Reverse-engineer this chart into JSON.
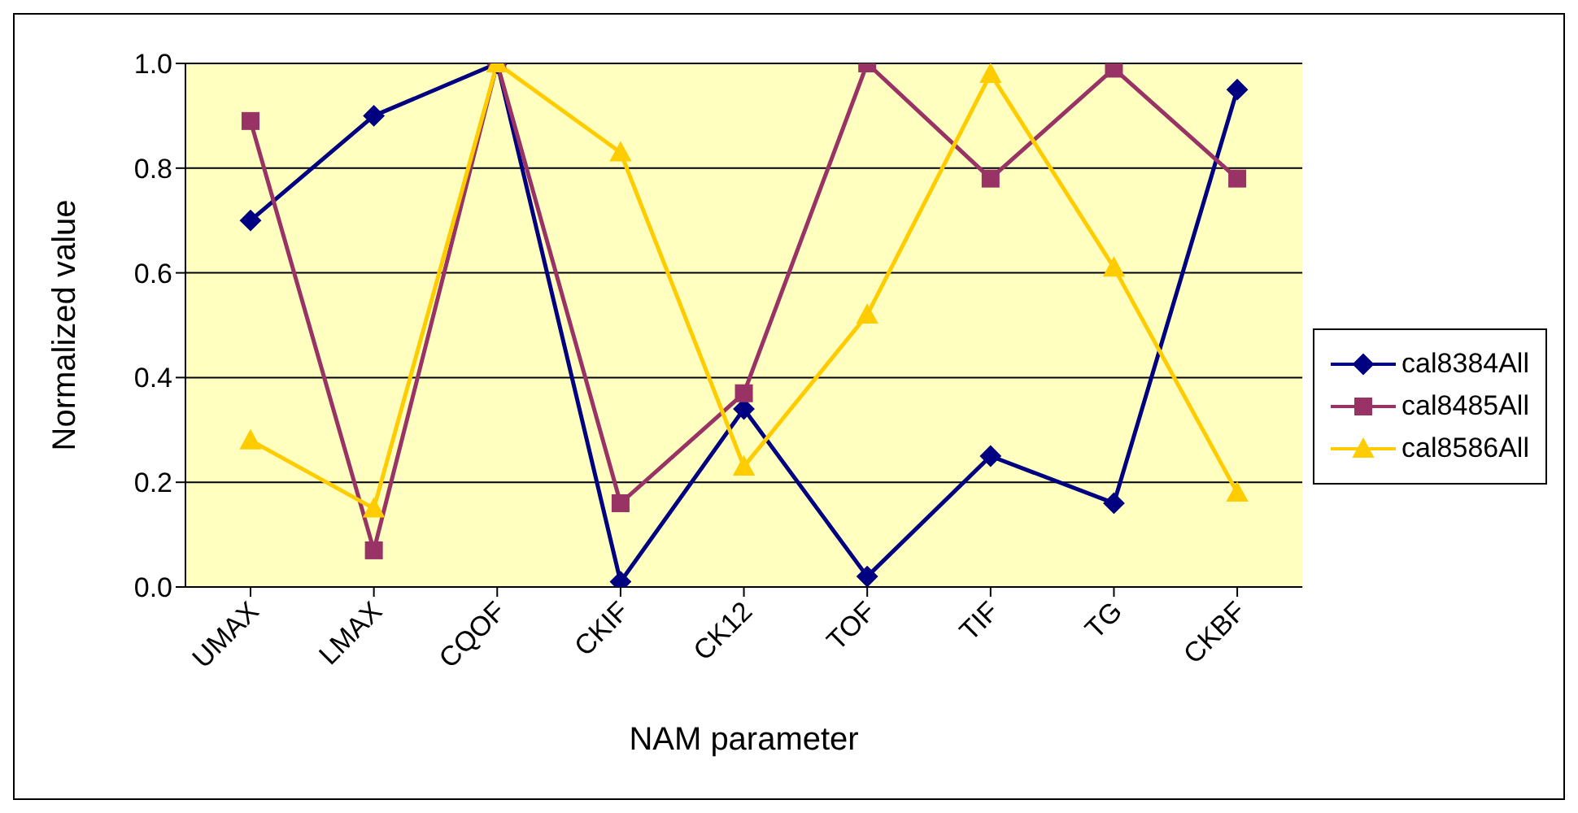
{
  "chart_data": {
    "type": "line",
    "xlabel": "NAM parameter",
    "ylabel": "Normalized value",
    "categories": [
      "UMAX",
      "LMAX",
      "CQOF",
      "CKIF",
      "CK12",
      "TOF",
      "TIF",
      "TG",
      "CKBF"
    ],
    "series": [
      {
        "name": "cal8384All",
        "color": "#000080",
        "marker": "diamond",
        "values": [
          0.7,
          0.9,
          1.0,
          0.01,
          0.34,
          0.02,
          0.25,
          0.16,
          0.95
        ]
      },
      {
        "name": "cal8485All",
        "color": "#993366",
        "marker": "square",
        "values": [
          0.89,
          0.07,
          1.0,
          0.16,
          0.37,
          1.0,
          0.78,
          0.99,
          0.78
        ]
      },
      {
        "name": "cal8586All",
        "color": "#ffcc00",
        "marker": "triangle",
        "values": [
          0.28,
          0.15,
          1.0,
          0.83,
          0.23,
          0.52,
          0.98,
          0.61,
          0.18
        ]
      }
    ],
    "ylim": [
      0,
      1
    ],
    "yticks": [
      {
        "value": 0,
        "label": "0.0"
      },
      {
        "value": 0.2,
        "label": "0.2"
      },
      {
        "value": 0.4,
        "label": "0.4"
      },
      {
        "value": 0.6,
        "label": "0.6"
      },
      {
        "value": 0.8,
        "label": "0.8"
      },
      {
        "value": 1,
        "label": "1.0"
      }
    ],
    "grid": "y",
    "legend": "right"
  }
}
